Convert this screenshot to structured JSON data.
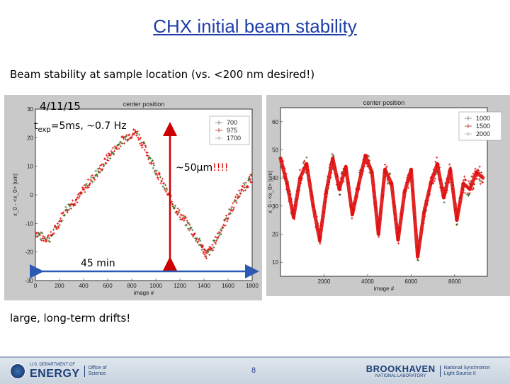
{
  "slide": {
    "title": "CHX initial beam stability",
    "subtitle": "Beam stability at sample location (vs. <200 nm desired!)",
    "date_label": "4/11/15",
    "texp_prefix": "t",
    "texp_sub": "exp",
    "texp_suffix": "=5ms, ~0.7 Hz",
    "amplitude_prefix": "~50µm",
    "amplitude_bang": "!!!!",
    "duration_label": "45 min",
    "conclusion": "large, long-term drifts!",
    "page_number": "8"
  },
  "footer": {
    "doe_small": "U.S. DEPARTMENT OF",
    "doe_big": "ENERGY",
    "doe_office_line1": "Office of",
    "doe_office_line2": "Science",
    "bnl_name": "BROOKHAVEN",
    "bnl_sub": "NATIONAL LABORATORY",
    "nsls_line1": "National Synchrotron",
    "nsls_line2": "Light Source II"
  },
  "colors": {
    "title": "#1f3fa8",
    "arrow": "#cc0000",
    "blue_arrow": "#2b59b4",
    "trace_red": "#e01010",
    "trace_green": "#2a7a2a"
  },
  "chart_data": [
    {
      "type": "scatter",
      "title": "center position",
      "xlabel": "image #",
      "ylabel": "x_0 - <x_0> [um]",
      "xlim": [
        0,
        1800
      ],
      "ylim": [
        -30,
        30
      ],
      "xticks": [
        "0",
        "200",
        "400",
        "600",
        "800",
        "1000",
        "1200",
        "1400",
        "1600",
        "1800"
      ],
      "yticks": [
        "30",
        "20",
        "10",
        "0",
        "-10",
        "-20",
        "-30"
      ],
      "legend": [
        "700",
        "975",
        "1700"
      ],
      "legend_position": "top-right",
      "series": [
        {
          "name": "700",
          "x": [
            0,
            60,
            120,
            180,
            240,
            300,
            360,
            420,
            480,
            540,
            600,
            660,
            720,
            780,
            840,
            900,
            960,
            1020,
            1080,
            1140,
            1200,
            1260,
            1320,
            1380,
            1420,
            1460,
            1520,
            1580,
            1640,
            1700,
            1760,
            1800
          ],
          "y": [
            -13,
            -15,
            -15,
            -11,
            -6,
            -3,
            -1,
            3,
            6,
            9,
            13,
            16,
            19,
            21,
            22,
            17,
            12,
            7,
            2,
            -3,
            -7,
            -10,
            -14,
            -18,
            -21,
            -19,
            -14,
            -9,
            -4,
            1,
            4,
            6
          ]
        }
      ]
    },
    {
      "type": "scatter",
      "title": "center position",
      "xlabel": "image #",
      "ylabel": "x_0 - <x_0> [um]",
      "xlim": [
        0,
        9500
      ],
      "ylim": [
        5,
        65
      ],
      "xticks": [
        "2000",
        "4000",
        "6000",
        "8000"
      ],
      "yticks": [
        "60",
        "50",
        "40",
        "30",
        "20",
        "10"
      ],
      "legend": [
        "1000",
        "1500",
        "2000"
      ],
      "legend_position": "top-right",
      "series": [
        {
          "name": "1000",
          "x": [
            0,
            300,
            600,
            900,
            1200,
            1500,
            1800,
            2100,
            2400,
            2700,
            3000,
            3300,
            3600,
            3900,
            4200,
            4500,
            4800,
            5100,
            5400,
            5700,
            6000,
            6300,
            6600,
            6900,
            7200,
            7500,
            7800,
            8100,
            8400,
            8700,
            9000,
            9300
          ],
          "y": [
            47,
            38,
            26,
            40,
            45,
            30,
            18,
            35,
            47,
            36,
            44,
            27,
            38,
            48,
            42,
            20,
            43,
            38,
            18,
            35,
            43,
            12,
            28,
            38,
            45,
            33,
            43,
            25,
            38,
            36,
            42,
            40
          ]
        }
      ]
    }
  ]
}
